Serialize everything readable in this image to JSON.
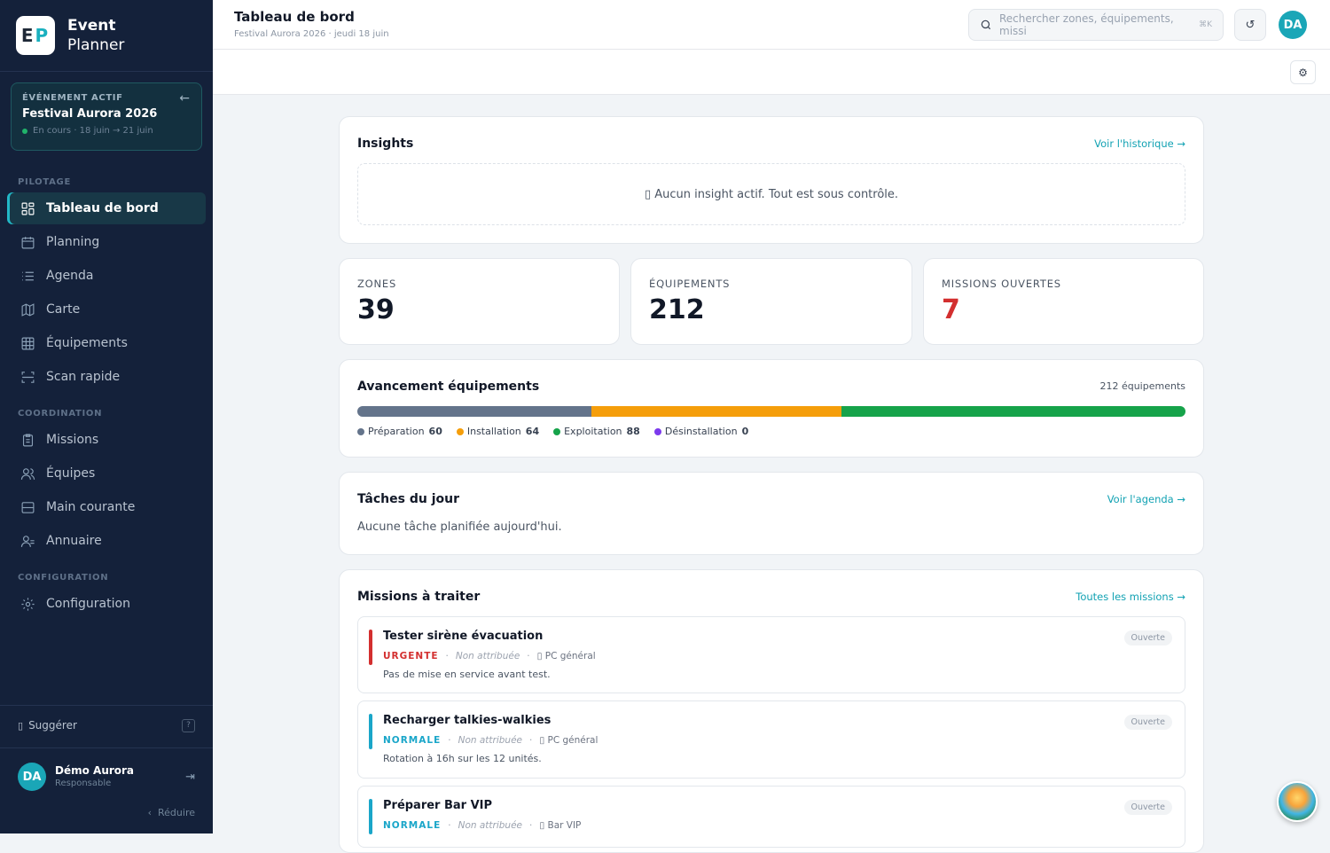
{
  "sidebar": {
    "logo_letters": [
      "E",
      "P"
    ],
    "app_name_1": "Event",
    "app_name_2": "Planner",
    "event": {
      "kicker": "ÉVÉNEMENT ACTIF",
      "name": "Festival Aurora 2026",
      "status": "En cours",
      "dates": "· 18 juin → 21 juin"
    },
    "sections": {
      "pilotage": "PILOTAGE",
      "coordination": "COORDINATION",
      "configuration": "CONFIGURATION"
    },
    "items": [
      {
        "label": "Tableau de bord",
        "icon": "dashboard-icon"
      },
      {
        "label": "Planning",
        "icon": "calendar-icon"
      },
      {
        "label": "Agenda",
        "icon": "list-icon"
      },
      {
        "label": "Carte",
        "icon": "map-icon"
      },
      {
        "label": "Équipements",
        "icon": "grid-icon"
      },
      {
        "label": "Scan rapide",
        "icon": "scan-icon"
      },
      {
        "label": "Missions",
        "icon": "clipboard-icon"
      },
      {
        "label": "Équipes",
        "icon": "users-icon"
      },
      {
        "label": "Main courante",
        "icon": "logbook-icon"
      },
      {
        "label": "Annuaire",
        "icon": "contacts-icon"
      },
      {
        "label": "Configuration",
        "icon": "gear-icon"
      }
    ],
    "suggest": "Suggérer",
    "help": "?",
    "user": {
      "initials": "DA",
      "name": "Démo Aurora",
      "role": "Responsable"
    },
    "reduce": "Réduire"
  },
  "header": {
    "title": "Tableau de bord",
    "subtitle": "Festival Aurora 2026 · jeudi 18 juin",
    "search_placeholder": "Rechercher zones, équipements, missi",
    "search_kbd": "⌘K",
    "user_initials": "DA"
  },
  "insights": {
    "title": "Insights",
    "link": "Voir l'historique →",
    "empty": "Aucun insight actif. Tout est sous contrôle."
  },
  "kpis": [
    {
      "label": "ZONES",
      "value": "39",
      "color": "#111827"
    },
    {
      "label": "ÉQUIPEMENTS",
      "value": "212",
      "color": "#111827"
    },
    {
      "label": "MISSIONS OUVERTES",
      "value": "7",
      "color": "#d32f2f"
    }
  ],
  "progress": {
    "title": "Avancement équipements",
    "total_label": "212 équipements",
    "segments": [
      {
        "label": "Préparation",
        "value": 60,
        "color": "#64748b"
      },
      {
        "label": "Installation",
        "value": 64,
        "color": "#f59e0b"
      },
      {
        "label": "Exploitation",
        "value": 88,
        "color": "#16a34a"
      },
      {
        "label": "Désinstallation",
        "value": 0,
        "color": "#7c3aed"
      }
    ]
  },
  "tasks": {
    "title": "Tâches du jour",
    "link": "Voir l'agenda →",
    "empty": "Aucune tâche planifiée aujourd'hui."
  },
  "missions": {
    "title": "Missions à traiter",
    "link": "Toutes les missions →",
    "items": [
      {
        "title": "Tester sirène évacuation",
        "priority": "URGENTE",
        "priority_color": "#d32f2f",
        "assignee": "Non attribuée",
        "location": "PC général",
        "desc": "Pas de mise en service avant test.",
        "status": "Ouverte"
      },
      {
        "title": "Recharger talkies-walkies",
        "priority": "NORMALE",
        "priority_color": "#1aa6c9",
        "assignee": "Non attribuée",
        "location": "PC général",
        "desc": "Rotation à 16h sur les 12 unités.",
        "status": "Ouverte"
      },
      {
        "title": "Préparer Bar VIP",
        "priority": "NORMALE",
        "priority_color": "#1aa6c9",
        "assignee": "Non attribuée",
        "location": "Bar VIP",
        "desc": "",
        "status": "Ouverte"
      }
    ]
  }
}
